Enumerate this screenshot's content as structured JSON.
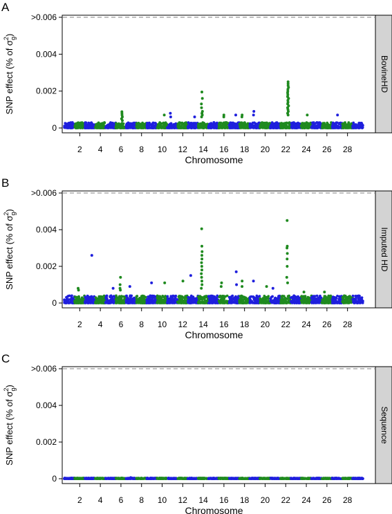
{
  "figure": {
    "series_colors": [
      "#1f1fdd",
      "#1f8a1f"
    ],
    "threshold_color": "#9a9a9a",
    "strip_color": "#d3d3d3"
  },
  "chart_data": [
    {
      "type": "scatter",
      "panel_label": "A",
      "strip_label": "BovineHD",
      "xlabel": "Chromosome",
      "ylabel": "SNP effect (% of σ²g)",
      "ylabel_main": "SNP effect (% of σ",
      "ylabel_sup": "2",
      "ylabel_sub": "g",
      "ylabel_close": ")",
      "ylim": [
        0,
        0.006
      ],
      "y_ticks": [
        "0",
        "0.002",
        "0.004",
        ">0.006"
      ],
      "y_tick_values": [
        0,
        0.002,
        0.004,
        0.006
      ],
      "x_ticks": [
        "2",
        "4",
        "6",
        "8",
        "10",
        "12",
        "14",
        "16",
        "18",
        "20",
        "22",
        "24",
        "26",
        "28"
      ],
      "chromosomes": 29,
      "threshold_line": 0.006,
      "background_level": 0.0003,
      "peaks": [
        {
          "chr": 6,
          "values": [
            0.00088,
            0.0008,
            0.0007,
            0.0006,
            0.0005,
            0.0004
          ]
        },
        {
          "chr": 10,
          "values": [
            0.0007
          ]
        },
        {
          "chr": 11,
          "values": [
            0.0008,
            0.0006
          ]
        },
        {
          "chr": 13,
          "values": [
            0.0006
          ]
        },
        {
          "chr": 14,
          "values": [
            0.00195,
            0.0016,
            0.0013,
            0.0011,
            0.0009,
            0.0008,
            0.0007,
            0.0006
          ]
        },
        {
          "chr": 16,
          "values": [
            0.0007,
            0.0006
          ]
        },
        {
          "chr": 17,
          "values": [
            0.0007
          ]
        },
        {
          "chr": 18,
          "values": [
            0.0007,
            0.0006
          ]
        },
        {
          "chr": 19,
          "values": [
            0.0009,
            0.0007
          ]
        },
        {
          "chr": 22,
          "values": [
            0.0025,
            0.0024,
            0.0023,
            0.0022,
            0.0021,
            0.002,
            0.0019,
            0.0018,
            0.0017,
            0.0016,
            0.0015,
            0.0014,
            0.0013,
            0.0012,
            0.0011,
            0.001,
            0.0009,
            0.0008,
            0.0007
          ]
        },
        {
          "chr": 24,
          "values": [
            0.0007
          ]
        },
        {
          "chr": 27,
          "values": [
            0.0007
          ]
        }
      ]
    },
    {
      "type": "scatter",
      "panel_label": "B",
      "strip_label": "Imputed HD",
      "xlabel": "Chromosome",
      "ylabel": "SNP effect (% of σ²g)",
      "ylabel_main": "SNP effect (% of σ",
      "ylabel_sup": "2",
      "ylabel_sub": "g",
      "ylabel_close": ")",
      "ylim": [
        0,
        0.006
      ],
      "y_ticks": [
        "0",
        "0.002",
        "0.004",
        ">0.006"
      ],
      "y_tick_values": [
        0,
        0.002,
        0.004,
        0.006
      ],
      "x_ticks": [
        "2",
        "4",
        "6",
        "8",
        "10",
        "12",
        "14",
        "16",
        "18",
        "20",
        "22",
        "24",
        "26",
        "28"
      ],
      "chromosomes": 29,
      "threshold_line": 0.006,
      "background_level": 0.0004,
      "peaks": [
        {
          "chr": 2,
          "values": [
            0.0008,
            0.0007
          ]
        },
        {
          "chr": 3,
          "values": [
            0.0026
          ]
        },
        {
          "chr": 5,
          "values": [
            0.0008
          ]
        },
        {
          "chr": 6,
          "values": [
            0.0014,
            0.001,
            0.0008,
            0.0007
          ]
        },
        {
          "chr": 7,
          "values": [
            0.0009
          ]
        },
        {
          "chr": 9,
          "values": [
            0.0011
          ]
        },
        {
          "chr": 10,
          "values": [
            0.0011
          ]
        },
        {
          "chr": 12,
          "values": [
            0.0012
          ]
        },
        {
          "chr": 13,
          "values": [
            0.0015
          ]
        },
        {
          "chr": 14,
          "values": [
            0.00405,
            0.0031,
            0.0028,
            0.0026,
            0.0024,
            0.0022,
            0.002,
            0.0018,
            0.0016,
            0.0014,
            0.0012,
            0.001,
            0.0008
          ]
        },
        {
          "chr": 16,
          "values": [
            0.0011,
            0.0009
          ]
        },
        {
          "chr": 17,
          "values": [
            0.0017,
            0.001
          ]
        },
        {
          "chr": 18,
          "values": [
            0.0012,
            0.0009
          ]
        },
        {
          "chr": 19,
          "values": [
            0.0012
          ]
        },
        {
          "chr": 20,
          "values": [
            0.0009
          ]
        },
        {
          "chr": 21,
          "values": [
            0.0008
          ]
        },
        {
          "chr": 22,
          "values": [
            0.0045,
            0.0031,
            0.003,
            0.0027,
            0.0024,
            0.002,
            0.0014,
            0.0011
          ]
        },
        {
          "chr": 24,
          "values": [
            0.0006
          ]
        },
        {
          "chr": 26,
          "values": [
            0.0006
          ]
        }
      ]
    },
    {
      "type": "scatter",
      "panel_label": "C",
      "strip_label": "Sequence",
      "xlabel": "Chromosome",
      "ylabel": "SNP effect (% of σ²g)",
      "ylabel_main": "SNP effect (% of σ",
      "ylabel_sup": "2",
      "ylabel_sub": "g",
      "ylabel_close": ")",
      "ylim": [
        0,
        0.006
      ],
      "y_ticks": [
        "0",
        "0.002",
        "0.004",
        ">0.006"
      ],
      "y_tick_values": [
        0,
        0.002,
        0.004,
        0.006
      ],
      "x_ticks": [
        "2",
        "4",
        "6",
        "8",
        "10",
        "12",
        "14",
        "16",
        "18",
        "20",
        "22",
        "24",
        "26",
        "28"
      ],
      "chromosomes": 29,
      "threshold_line": 0.006,
      "background_level": 4e-05,
      "peaks": [
        {
          "chr": 7,
          "values": [
            6e-05
          ]
        }
      ]
    }
  ]
}
